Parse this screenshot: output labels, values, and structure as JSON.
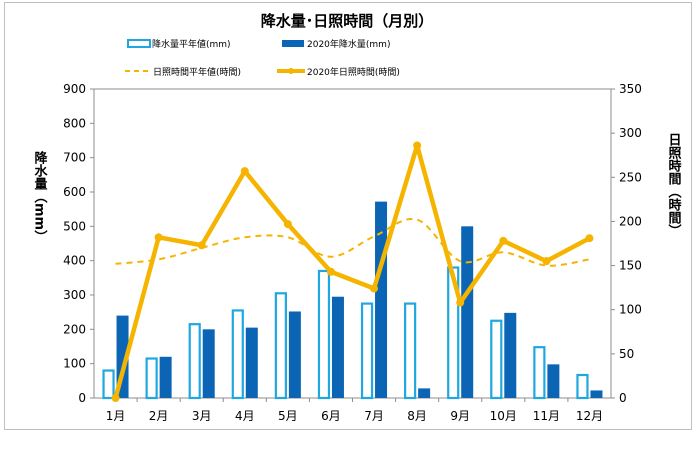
{
  "chart_data": {
    "type": "bar",
    "title": "降水量･日照時間（月別）",
    "categories": [
      "1月",
      "2月",
      "3月",
      "4月",
      "5月",
      "6月",
      "7月",
      "8月",
      "9月",
      "10月",
      "11月",
      "12月"
    ],
    "series": [
      {
        "name": "降水量平年値(mm)",
        "kind": "bar",
        "style": "outline",
        "axis": "left",
        "color": "#1fa8e0",
        "values": [
          80,
          115,
          215,
          255,
          305,
          370,
          275,
          275,
          380,
          225,
          148,
          67
        ]
      },
      {
        "name": "2020年降水量(mm)",
        "kind": "bar",
        "style": "filled",
        "axis": "left",
        "color": "#0b65b4",
        "values": [
          240,
          120,
          200,
          205,
          252,
          295,
          572,
          28,
          500,
          248,
          98,
          22
        ]
      },
      {
        "name": "日照時間平年値(時間)",
        "kind": "line",
        "style": "dashed",
        "axis": "right",
        "color": "#f5b400",
        "values": [
          152,
          157,
          170,
          182,
          182,
          160,
          183,
          202,
          155,
          165,
          150,
          157
        ]
      },
      {
        "name": "2020年日照時間(時間)",
        "kind": "line",
        "style": "solid-markers",
        "axis": "right",
        "color": "#f5b400",
        "values": [
          0,
          182,
          173,
          257,
          197,
          143,
          124,
          286,
          108,
          178,
          155,
          181
        ]
      }
    ],
    "ylabel": "降水量（mm）",
    "y2label": "日照時間（時間）",
    "ylim": [
      0,
      900
    ],
    "y2lim": [
      0,
      350
    ],
    "yticks": [
      "0",
      "100",
      "200",
      "300",
      "400",
      "500",
      "600",
      "700",
      "800",
      "900"
    ],
    "y2ticks": [
      "0",
      "50",
      "100",
      "150",
      "200",
      "250",
      "300",
      "350"
    ],
    "grid": false,
    "legend_position": "top"
  }
}
